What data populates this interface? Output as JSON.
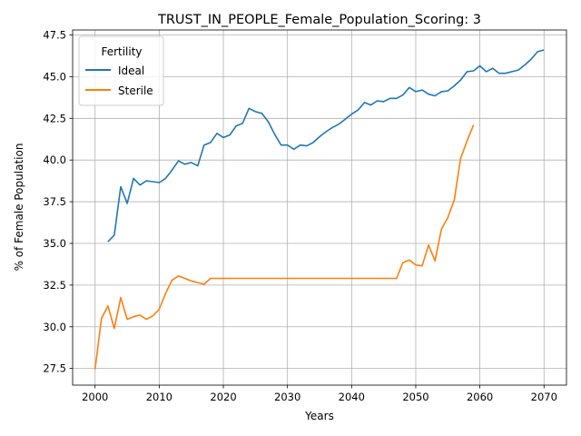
{
  "chart_data": {
    "type": "line",
    "title": "TRUST_IN_PEOPLE_Female_Population_Scoring: 3",
    "xlabel": "Years",
    "ylabel": "% of Female Population",
    "xlim": [
      1996.5,
      2073.5
    ],
    "ylim": [
      26.5,
      47.8
    ],
    "xticks": [
      2000,
      2010,
      2020,
      2030,
      2040,
      2050,
      2060,
      2070
    ],
    "yticks": [
      27.5,
      30.0,
      32.5,
      35.0,
      37.5,
      40.0,
      42.5,
      45.0,
      47.5
    ],
    "xtick_labels": [
      "2000",
      "2010",
      "2020",
      "2030",
      "2040",
      "2050",
      "2060",
      "2070"
    ],
    "ytick_labels": [
      "27.5",
      "30.0",
      "32.5",
      "35.0",
      "37.5",
      "40.0",
      "42.5",
      "45.0",
      "47.5"
    ],
    "grid": true,
    "legend": {
      "title": "Fertility",
      "placement": "top-left"
    },
    "series": [
      {
        "name": "Ideal",
        "color": "#1f77b4",
        "x": [
          2002,
          2003,
          2004,
          2005,
          2006,
          2007,
          2008,
          2009,
          2010,
          2011,
          2012,
          2013,
          2014,
          2015,
          2016,
          2017,
          2018,
          2019,
          2020,
          2021,
          2022,
          2023,
          2024,
          2025,
          2026,
          2027,
          2028,
          2029,
          2030,
          2031,
          2032,
          2033,
          2034,
          2035,
          2036,
          2037,
          2038,
          2039,
          2040,
          2041,
          2042,
          2043,
          2044,
          2045,
          2046,
          2047,
          2048,
          2049,
          2050,
          2051,
          2052,
          2053,
          2054,
          2055,
          2056,
          2057,
          2058,
          2059,
          2060,
          2061,
          2062,
          2063,
          2064,
          2065,
          2066,
          2067,
          2068,
          2069,
          2070
        ],
        "values": [
          35.1,
          35.5,
          38.4,
          37.4,
          38.9,
          38.5,
          38.75,
          38.7,
          38.65,
          38.9,
          39.4,
          39.95,
          39.75,
          39.85,
          39.65,
          40.9,
          41.05,
          41.6,
          41.35,
          41.5,
          42.05,
          42.2,
          43.1,
          42.9,
          42.8,
          42.3,
          41.55,
          40.9,
          40.9,
          40.65,
          40.9,
          40.85,
          41.05,
          41.4,
          41.7,
          41.95,
          42.15,
          42.45,
          42.75,
          43.0,
          43.45,
          43.3,
          43.55,
          43.5,
          43.7,
          43.7,
          43.9,
          44.35,
          44.1,
          44.2,
          43.95,
          43.85,
          44.1,
          44.15,
          44.45,
          44.8,
          45.3,
          45.35,
          45.65,
          45.3,
          45.5,
          45.2,
          45.2,
          45.3,
          45.4,
          45.7,
          46.05,
          46.5,
          46.6
        ]
      },
      {
        "name": "Sterile",
        "color": "#ff7f0e",
        "x": [
          2000,
          2001,
          2002,
          2003,
          2004,
          2005,
          2006,
          2007,
          2008,
          2009,
          2010,
          2011,
          2012,
          2013,
          2014,
          2015,
          2016,
          2017,
          2018,
          2019,
          2020,
          2021,
          2022,
          2023,
          2024,
          2025,
          2026,
          2027,
          2028,
          2029,
          2030,
          2031,
          2032,
          2033,
          2034,
          2035,
          2036,
          2037,
          2038,
          2039,
          2040,
          2041,
          2042,
          2043,
          2044,
          2045,
          2046,
          2047,
          2048,
          2049,
          2050,
          2051,
          2052,
          2053,
          2054,
          2055,
          2056,
          2057,
          2058,
          2059
        ],
        "values": [
          27.45,
          30.5,
          31.25,
          29.9,
          31.75,
          30.45,
          30.6,
          30.7,
          30.45,
          30.65,
          31.05,
          32.0,
          32.8,
          33.05,
          32.9,
          32.75,
          32.65,
          32.55,
          32.9,
          32.9,
          32.9,
          32.9,
          32.9,
          32.9,
          32.9,
          32.9,
          32.9,
          32.9,
          32.9,
          32.9,
          32.9,
          32.9,
          32.9,
          32.9,
          32.9,
          32.9,
          32.9,
          32.9,
          32.9,
          32.9,
          32.9,
          32.9,
          32.9,
          32.9,
          32.9,
          32.9,
          32.9,
          32.9,
          33.85,
          34.0,
          33.7,
          33.65,
          34.9,
          33.95,
          35.85,
          36.55,
          37.6,
          40.1,
          41.15,
          42.1
        ]
      }
    ]
  }
}
